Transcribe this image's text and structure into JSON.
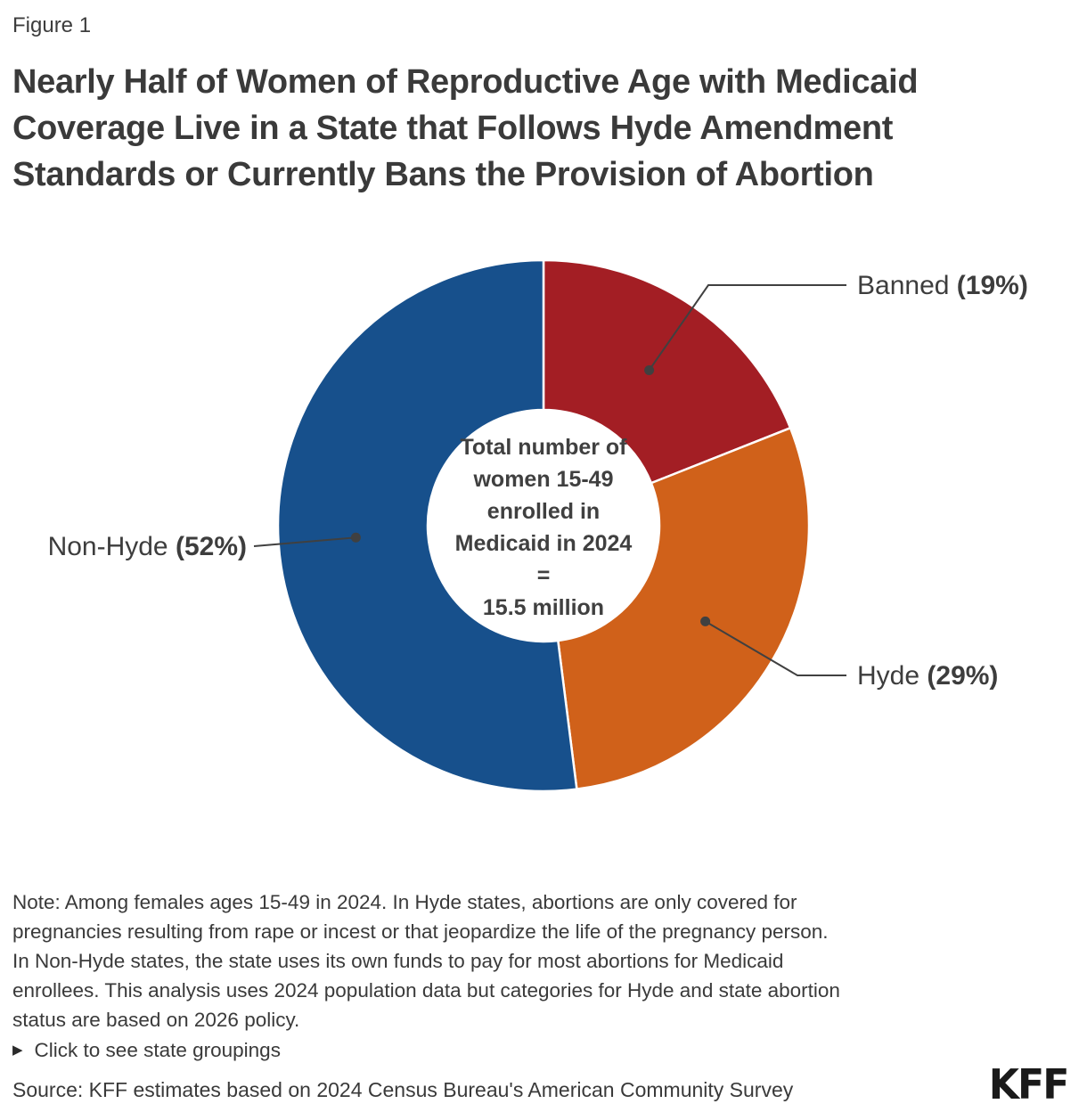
{
  "figure_label": "Figure 1",
  "title_lines": [
    "Nearly Half of Women of Reproductive Age with Medicaid",
    "Coverage Live in a State that Follows Hyde Amendment",
    "Standards or Currently Bans the Provision of Abortion"
  ],
  "chart_data": {
    "type": "pie",
    "subtype": "donut",
    "title": "Nearly Half of Women of Reproductive Age with Medicaid Coverage Live in a State that Follows Hyde Amendment Standards or Currently Bans the Provision of Abortion",
    "start_angle": "top, clockwise",
    "center_label_lines": [
      "Total number of",
      "women 15-49",
      "enrolled in",
      "Medicaid in 2024",
      "=",
      "15.5 million"
    ],
    "total": "15.5 million",
    "slices": [
      {
        "label": "Banned",
        "pct_label": "(19%)",
        "value": 19,
        "color": "#A31E24"
      },
      {
        "label": "Hyde",
        "pct_label": "(29%)",
        "value": 29,
        "color": "#D0611A"
      },
      {
        "label": "Non-Hyde",
        "pct_label": "(52%)",
        "value": 52,
        "color": "#17508C"
      }
    ],
    "legend_position": "callout labels with leader lines"
  },
  "note_lines": [
    "Note: Among females ages 15-49 in 2024. In Hyde states, abortions are only covered for",
    "pregnancies resulting from rape or incest or that jeopardize the life of the pregnancy person.",
    "In Non-Hyde states, the state uses its own funds to pay for most abortions for Medicaid",
    "enrollees. This analysis uses 2024 population data but categories for Hyde and state abortion",
    "status are based on 2026 policy."
  ],
  "expander": {
    "icon": "▶",
    "label": "Click to see state groupings"
  },
  "source": "Source: KFF estimates based on 2024 Census Bureau's American Community Survey",
  "logo": "KFF",
  "colors": {
    "leader_line": "#404040",
    "text": "#3C3C3C",
    "background": "#FFFFFF"
  }
}
